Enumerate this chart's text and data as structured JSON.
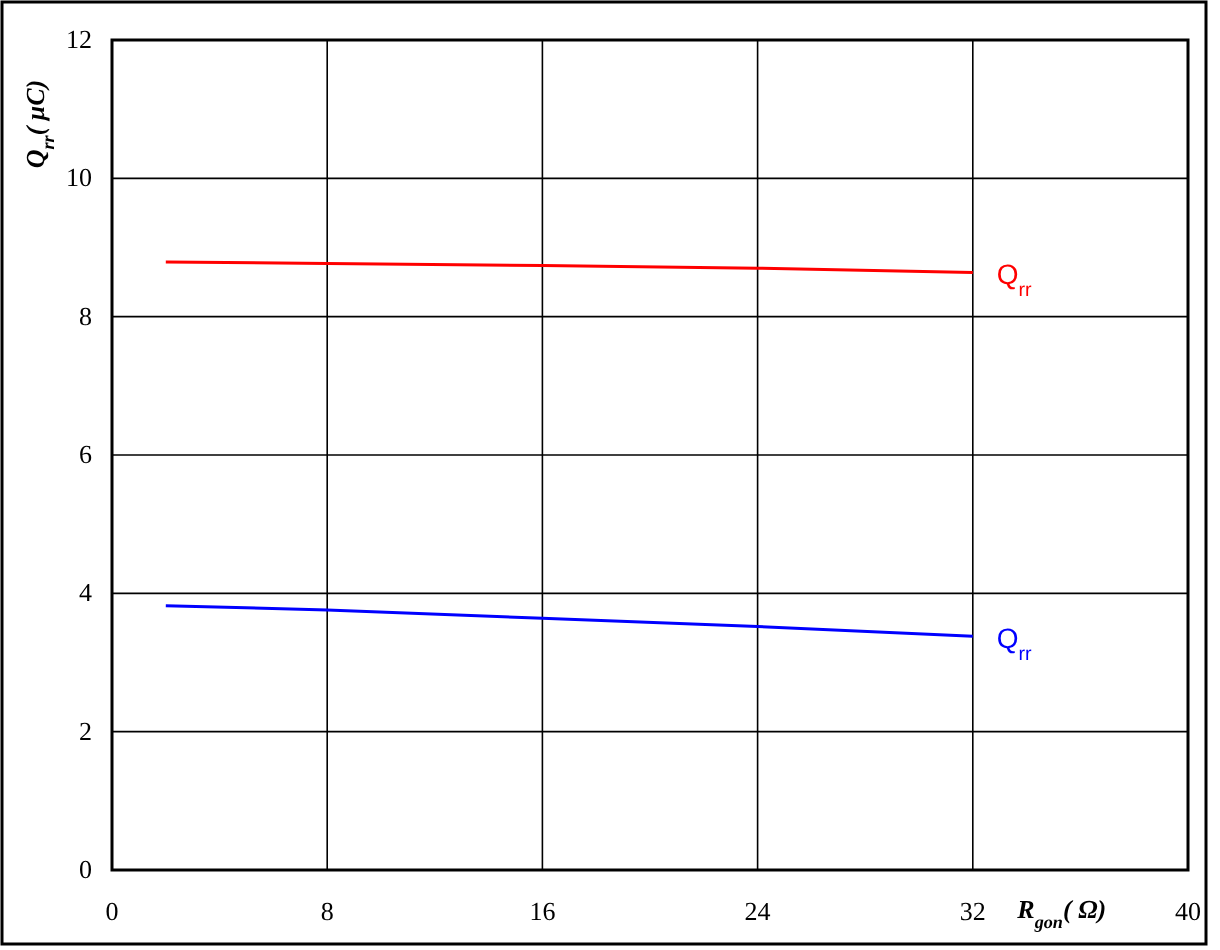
{
  "chart_data": {
    "type": "line",
    "xlabel": "R$_{gon}$( Ω)",
    "ylabel": "Q$_{rr}$( μC)",
    "xlim": [
      0,
      40
    ],
    "ylim": [
      0,
      12
    ],
    "xticks": [
      0,
      8,
      16,
      24,
      32,
      40
    ],
    "yticks": [
      0,
      2,
      4,
      6,
      8,
      10,
      12
    ],
    "grid": true,
    "series": [
      {
        "name": "Q$_{rr}$",
        "color": "#ff0000",
        "x": [
          2,
          8,
          16,
          24,
          32
        ],
        "values": [
          8.79,
          8.77,
          8.74,
          8.7,
          8.64
        ]
      },
      {
        "name": "Q$_{rr}$",
        "color": "#0000ff",
        "x": [
          2,
          8,
          16,
          24,
          32
        ],
        "values": [
          3.82,
          3.76,
          3.64,
          3.52,
          3.38
        ]
      }
    ]
  }
}
